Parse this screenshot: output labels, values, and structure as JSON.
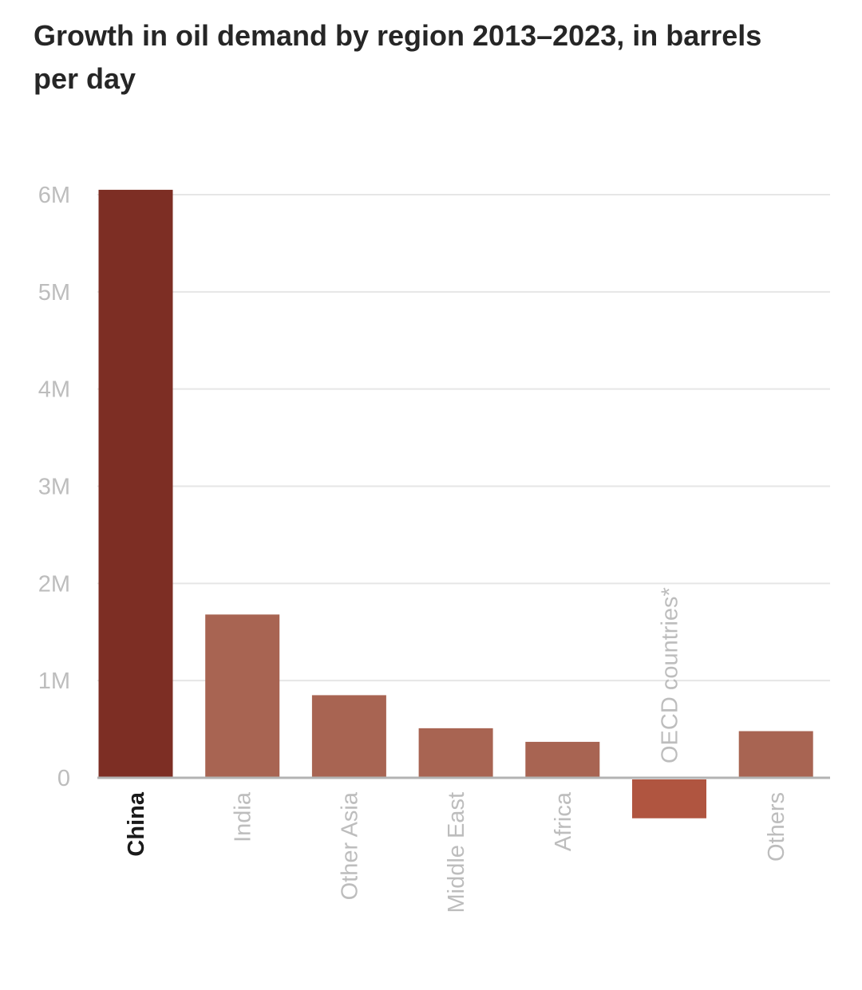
{
  "title": "Growth in oil demand by region 2013–2023, in barrels per day",
  "chart_data": {
    "type": "bar",
    "title": "Growth in oil demand by region 2013–2023, in barrels per day",
    "xlabel": "",
    "ylabel": "",
    "ylim": [
      0,
      6000000
    ],
    "yticks": [
      {
        "value": 0,
        "label": "0"
      },
      {
        "value": 1000000,
        "label": "1M"
      },
      {
        "value": 2000000,
        "label": "2M"
      },
      {
        "value": 3000000,
        "label": "3M"
      },
      {
        "value": 4000000,
        "label": "4M"
      },
      {
        "value": 5000000,
        "label": "5M"
      },
      {
        "value": 6000000,
        "label": "6M"
      }
    ],
    "grid": true,
    "categories": [
      "China",
      "India",
      "Other Asia",
      "Middle East",
      "Africa",
      "OECD countries*",
      "Others"
    ],
    "values": [
      6050000,
      1680000,
      850000,
      510000,
      370000,
      -400000,
      480000
    ],
    "highlighted": "China",
    "colors": {
      "highlight": "#7d2e24",
      "positive": "#a86452",
      "negative": "#b05540",
      "grid": "#e6e6e6",
      "axis": "#b3b3b3"
    }
  }
}
